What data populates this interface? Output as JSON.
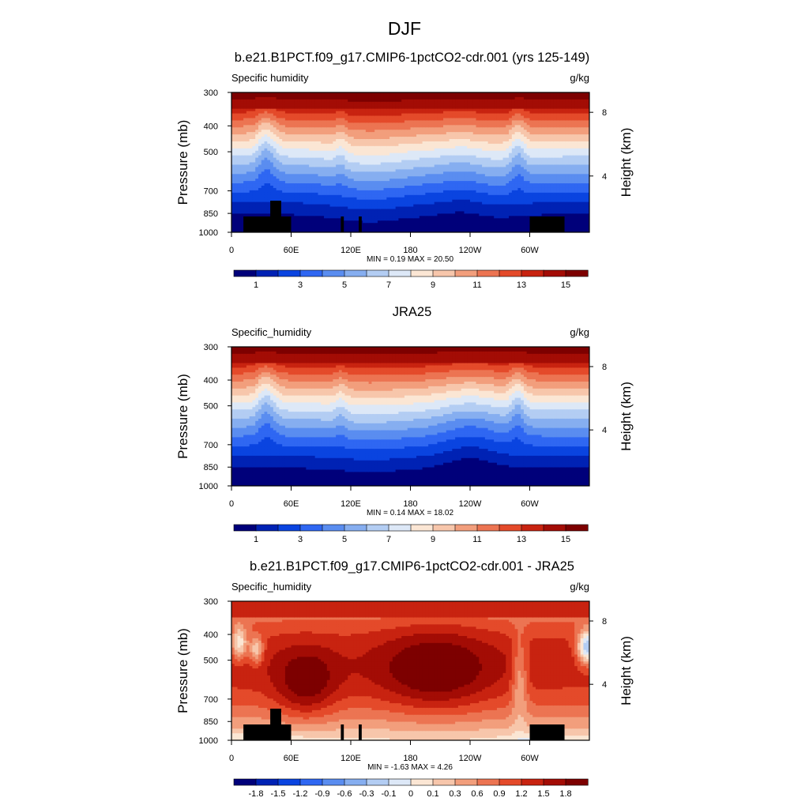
{
  "figure_title": "DJF",
  "chart_data": [
    {
      "type": "heatmap",
      "title": "b.e21.B1PCT.f09_g17.CMIP6-1pctCO2-cdr.001 (yrs 125-149)",
      "left_label": "Specific humidity",
      "units": "g/kg",
      "ylabel": "Pressure (mb)",
      "ylabel_right": "Height (km)",
      "x_ticks": [
        "0",
        "60E",
        "120E",
        "180",
        "120W",
        "60W"
      ],
      "y_ticks": [
        "300",
        "400",
        "500",
        "700",
        "850",
        "1000"
      ],
      "right_ticks": [
        "8",
        "4"
      ],
      "stats": "MIN =   0.19  MAX =  20.50",
      "colorbar_labels": [
        "1",
        "3",
        "5",
        "7",
        "9",
        "11",
        "13",
        "15"
      ],
      "xlim": [
        0,
        360
      ],
      "ylim": [
        1000,
        300
      ],
      "y_scale": "log-pressure",
      "terrain_masked": true
    },
    {
      "type": "heatmap",
      "title": "JRA25",
      "left_label": "Specific_humidity",
      "units": "g/kg",
      "ylabel": "Pressure (mb)",
      "ylabel_right": "Height (km)",
      "x_ticks": [
        "0",
        "60E",
        "120E",
        "180",
        "120W",
        "60W"
      ],
      "y_ticks": [
        "300",
        "400",
        "500",
        "700",
        "850",
        "1000"
      ],
      "right_ticks": [
        "8",
        "4"
      ],
      "stats": "MIN =   0.14  MAX =  18.02",
      "colorbar_labels": [
        "1",
        "3",
        "5",
        "7",
        "9",
        "11",
        "13",
        "15"
      ],
      "xlim": [
        0,
        360
      ],
      "ylim": [
        1000,
        300
      ],
      "y_scale": "log-pressure",
      "terrain_masked": false
    },
    {
      "type": "heatmap",
      "title": "b.e21.B1PCT.f09_g17.CMIP6-1pctCO2-cdr.001 - JRA25",
      "left_label": "Specific_humidity",
      "units": "g/kg",
      "ylabel": "Pressure (mb)",
      "ylabel_right": "Height (km)",
      "x_ticks": [
        "0",
        "60E",
        "120E",
        "180",
        "120W",
        "60W"
      ],
      "y_ticks": [
        "300",
        "400",
        "500",
        "700",
        "850",
        "1000"
      ],
      "right_ticks": [
        "8",
        "4"
      ],
      "stats": "MIN =  -1.63  MAX =   4.26",
      "colorbar_labels": [
        "-1.8",
        "-1.5",
        "-1.2",
        "-0.9",
        "-0.6",
        "-0.3",
        "-0.1",
        "0",
        "0.1",
        "0.3",
        "0.6",
        "0.9",
        "1.2",
        "1.5",
        "1.8"
      ],
      "xlim": [
        0,
        360
      ],
      "ylim": [
        1000,
        300
      ],
      "y_scale": "log-pressure",
      "terrain_masked": true
    }
  ],
  "colormap_abs": [
    "#00007a",
    "#0022b4",
    "#0a44e0",
    "#2f67f2",
    "#5a8df0",
    "#86aef0",
    "#b3cdf3",
    "#dde8f7",
    "#fbe6d4",
    "#f7c6ab",
    "#f29e7c",
    "#ec7452",
    "#e44a2a",
    "#c82310",
    "#a30c05",
    "#7d0000"
  ],
  "colormap_diff": [
    "#00007a",
    "#0022b4",
    "#0a44e0",
    "#2f67f2",
    "#5a8df0",
    "#86aef0",
    "#b3cdf3",
    "#dde8f7",
    "#fbe6d4",
    "#f7c6ab",
    "#f29e7c",
    "#ec7452",
    "#e44a2a",
    "#c82310",
    "#a30c05",
    "#7d0000"
  ]
}
